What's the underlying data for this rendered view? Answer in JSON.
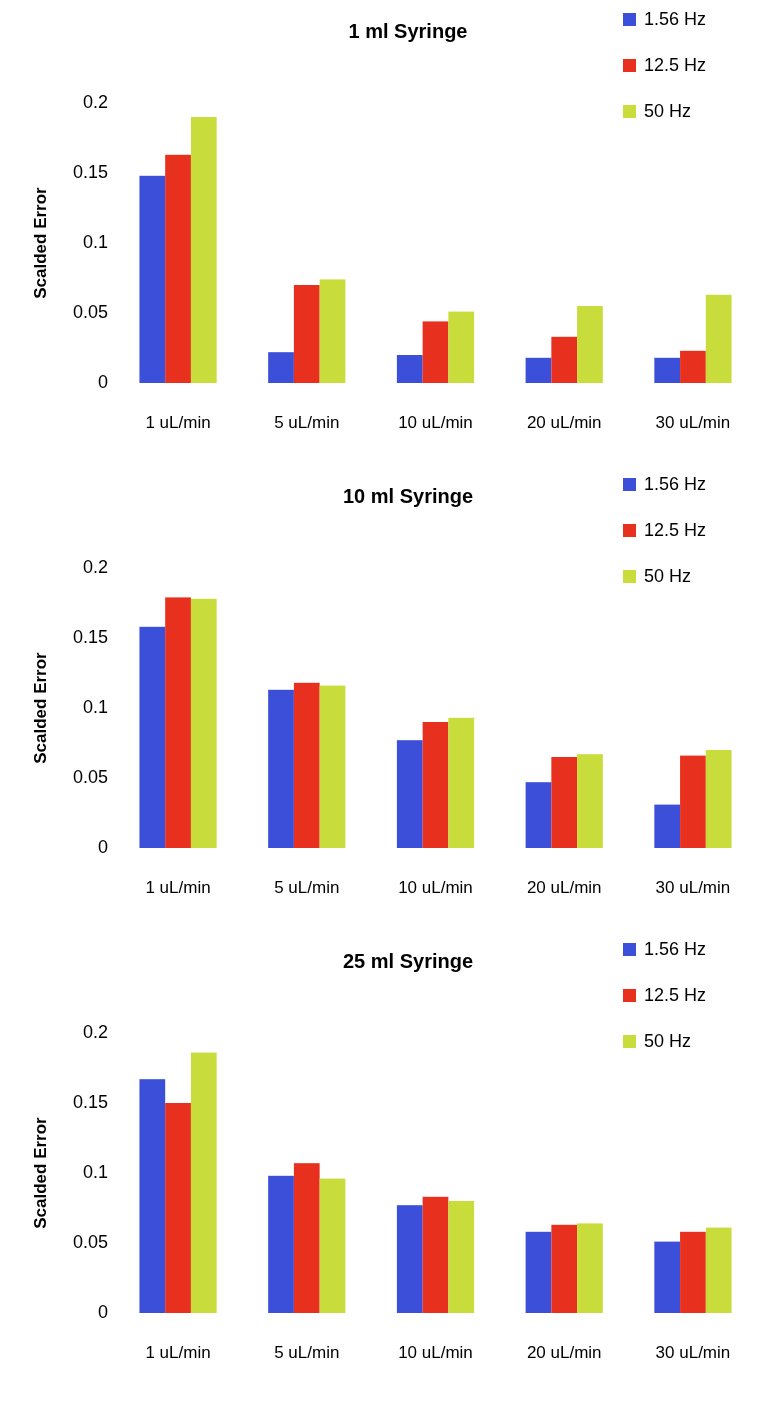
{
  "chart_data": [
    {
      "type": "bar",
      "title": "1 ml Syringe",
      "ylabel": "Scalded Error",
      "categories": [
        "1 uL/min",
        "5 uL/min",
        "10 uL/min",
        "20 uL/min",
        "30 uL/min"
      ],
      "ylim": [
        0,
        0.2
      ],
      "yticks": [
        0,
        0.05,
        0.1,
        0.15,
        0.2
      ],
      "legend": "top right",
      "series": [
        {
          "name": "1.56 Hz",
          "color": "#3b4fd8",
          "values": [
            0.148,
            0.022,
            0.02,
            0.018,
            0.018
          ]
        },
        {
          "name": "12.5 Hz",
          "color": "#e8301e",
          "values": [
            0.163,
            0.07,
            0.044,
            0.033,
            0.023
          ]
        },
        {
          "name": "50 Hz",
          "color": "#c8dc3c",
          "values": [
            0.19,
            0.074,
            0.051,
            0.055,
            0.063
          ]
        }
      ]
    },
    {
      "type": "bar",
      "title": "10 ml Syringe",
      "ylabel": "Scalded Error",
      "categories": [
        "1 uL/min",
        "5 uL/min",
        "10 uL/min",
        "20 uL/min",
        "30 uL/min"
      ],
      "ylim": [
        0,
        0.2
      ],
      "yticks": [
        0,
        0.05,
        0.1,
        0.15,
        0.2
      ],
      "legend": "top right",
      "series": [
        {
          "name": "1.56 Hz",
          "color": "#3b4fd8",
          "values": [
            0.158,
            0.113,
            0.077,
            0.047,
            0.031
          ]
        },
        {
          "name": "12.5 Hz",
          "color": "#e8301e",
          "values": [
            0.179,
            0.118,
            0.09,
            0.065,
            0.066
          ]
        },
        {
          "name": "50 Hz",
          "color": "#c8dc3c",
          "values": [
            0.178,
            0.116,
            0.093,
            0.067,
            0.07
          ]
        }
      ]
    },
    {
      "type": "bar",
      "title": "25 ml Syringe",
      "ylabel": "Scalded Error",
      "categories": [
        "1 uL/min",
        "5 uL/min",
        "10 uL/min",
        "20 uL/min",
        "30 uL/min"
      ],
      "ylim": [
        0,
        0.2
      ],
      "yticks": [
        0,
        0.05,
        0.1,
        0.15,
        0.2
      ],
      "legend": "top right",
      "series": [
        {
          "name": "1.56 Hz",
          "color": "#3b4fd8",
          "values": [
            0.167,
            0.098,
            0.077,
            0.058,
            0.051
          ]
        },
        {
          "name": "12.5 Hz",
          "color": "#e8301e",
          "values": [
            0.15,
            0.107,
            0.083,
            0.063,
            0.058
          ]
        },
        {
          "name": "50 Hz",
          "color": "#c8dc3c",
          "values": [
            0.186,
            0.096,
            0.08,
            0.064,
            0.061
          ]
        }
      ]
    }
  ]
}
